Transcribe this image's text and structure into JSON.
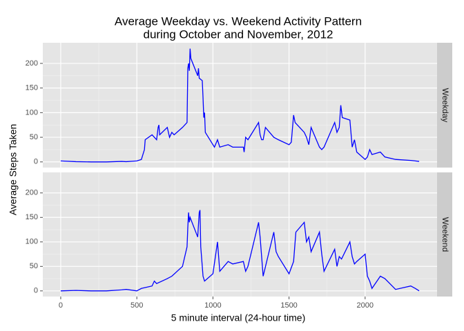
{
  "chart_data": {
    "type": "line",
    "title": [
      "Average Weekday vs. Weekend Activity Pattern",
      "during October and November, 2012"
    ],
    "xlabel": "5 minute interval (24-hour time)",
    "ylabel": "Average Steps Taken",
    "xlim": [
      -117.75,
      2472.75
    ],
    "xticks": [
      0,
      500,
      1000,
      1500,
      2000
    ],
    "ylim": [
      -11.5,
      241.9
    ],
    "yticks": [
      0,
      50,
      100,
      150,
      200
    ],
    "grid": true,
    "series": [
      {
        "name": "Weekday",
        "color": "#0000ff",
        "x": [
          0,
          100,
          200,
          300,
          400,
          430,
          500,
          530,
          550,
          555,
          600,
          615,
          630,
          640,
          645,
          650,
          700,
          715,
          730,
          745,
          800,
          830,
          835,
          840,
          845,
          850,
          855,
          900,
          905,
          910,
          930,
          935,
          940,
          945,
          950,
          1000,
          1010,
          1030,
          1045,
          1100,
          1130,
          1200,
          1205,
          1215,
          1230,
          1300,
          1310,
          1320,
          1330,
          1345,
          1400,
          1430,
          1500,
          1515,
          1530,
          1540,
          1600,
          1615,
          1630,
          1645,
          1700,
          1715,
          1730,
          1800,
          1815,
          1830,
          1840,
          1850,
          1900,
          1915,
          1930,
          1945,
          2000,
          2015,
          2030,
          2045,
          2100,
          2130,
          2200,
          2300,
          2355
        ],
        "values": [
          2,
          0.5,
          0,
          0,
          1,
          0.5,
          2,
          5,
          25,
          45,
          55,
          50,
          45,
          70,
          75,
          55,
          70,
          50,
          60,
          55,
          70,
          80,
          190,
          200,
          185,
          230,
          210,
          175,
          190,
          170,
          165,
          130,
          90,
          100,
          60,
          35,
          30,
          45,
          30,
          35,
          30,
          30,
          20,
          50,
          45,
          80,
          55,
          45,
          45,
          70,
          50,
          45,
          35,
          40,
          95,
          80,
          60,
          50,
          35,
          70,
          30,
          25,
          30,
          80,
          60,
          70,
          115,
          90,
          85,
          30,
          45,
          20,
          5,
          10,
          25,
          15,
          20,
          10,
          5,
          3,
          1
        ]
      },
      {
        "name": "Weekend",
        "color": "#0000ff",
        "x": [
          0,
          100,
          200,
          300,
          400,
          430,
          500,
          530,
          600,
          615,
          630,
          700,
          730,
          800,
          830,
          835,
          840,
          845,
          850,
          900,
          910,
          915,
          920,
          930,
          935,
          945,
          1000,
          1030,
          1045,
          1100,
          1130,
          1200,
          1215,
          1230,
          1300,
          1310,
          1330,
          1400,
          1415,
          1430,
          1500,
          1530,
          1545,
          1600,
          1615,
          1630,
          1645,
          1700,
          1715,
          1730,
          1800,
          1815,
          1830,
          1845,
          1900,
          1915,
          1930,
          1945,
          2000,
          2015,
          2030,
          2045,
          2100,
          2130,
          2200,
          2300,
          2330,
          2355
        ],
        "values": [
          0,
          1,
          0,
          0,
          2,
          3,
          0,
          5,
          10,
          20,
          15,
          25,
          30,
          50,
          90,
          130,
          160,
          140,
          150,
          110,
          160,
          165,
          90,
          50,
          30,
          20,
          35,
          100,
          40,
          60,
          55,
          60,
          40,
          50,
          140,
          110,
          30,
          120,
          80,
          70,
          35,
          60,
          120,
          140,
          100,
          110,
          80,
          120,
          75,
          40,
          85,
          50,
          70,
          65,
          100,
          70,
          55,
          60,
          75,
          30,
          20,
          5,
          30,
          25,
          3,
          10,
          5,
          0
        ]
      }
    ]
  }
}
